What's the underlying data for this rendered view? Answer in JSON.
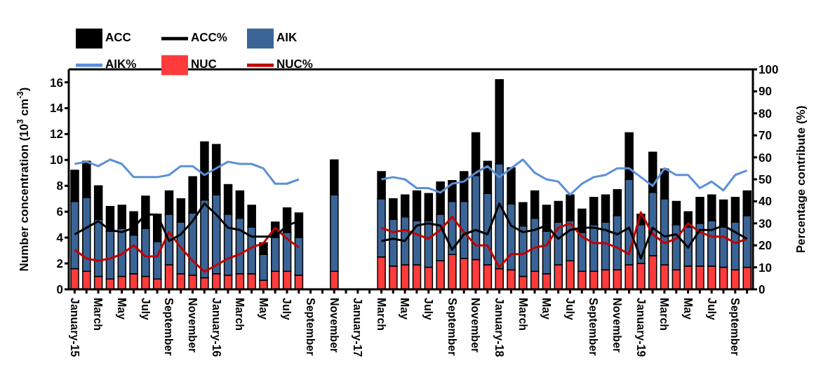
{
  "chart_data": {
    "type": "bar",
    "stacked": true,
    "legend": "top left",
    "ylabel": "Number concentration (10$^{3}$ cm$^{-3}$)",
    "y2label": "Percentage contribute (%)",
    "categories": [
      "January-15",
      null,
      "March",
      null,
      "May",
      null,
      "July",
      null,
      "September",
      null,
      "November",
      null,
      "January-16",
      null,
      "March",
      null,
      "May",
      null,
      "July",
      null,
      "September",
      null,
      "November",
      null,
      "January-17",
      null,
      "March",
      null,
      "May",
      null,
      "July",
      null,
      "September",
      null,
      "November",
      null,
      "January-18",
      null,
      "March",
      null,
      "May",
      null,
      "July",
      null,
      "September",
      null,
      "November",
      null,
      "January-19",
      null,
      "March",
      null,
      "May",
      null,
      "July",
      null,
      "September",
      null
    ],
    "ylim": [
      0,
      17
    ],
    "yticks": [
      0,
      2,
      4,
      6,
      8,
      10,
      12,
      14,
      16
    ],
    "y2lim": [
      0,
      100
    ],
    "y2ticks": [
      0,
      10,
      20,
      30,
      40,
      50,
      60,
      70,
      80,
      90,
      100
    ],
    "series": [
      {
        "name": "NUC",
        "color": "#ff3b3b",
        "values": [
          1.6,
          1.4,
          1.0,
          0.8,
          1.0,
          1.2,
          1.0,
          0.8,
          1.9,
          1.2,
          1.1,
          0.9,
          1.2,
          1.1,
          1.2,
          1.2,
          0.7,
          1.4,
          1.4,
          1.1,
          null,
          null,
          1.4,
          null,
          null,
          null,
          2.5,
          1.8,
          1.9,
          1.9,
          1.7,
          2.2,
          2.7,
          2.4,
          2.3,
          1.9,
          1.6,
          1.5,
          1.0,
          1.4,
          1.2,
          1.9,
          2.2,
          1.4,
          1.4,
          1.5,
          1.5,
          1.9,
          2.0,
          2.6,
          1.9,
          1.5,
          1.8,
          1.8,
          1.8,
          1.7,
          1.5,
          1.7
        ]
      },
      {
        "name": "AIK",
        "color": "#3a6496",
        "values": [
          5.2,
          5.7,
          4.4,
          3.7,
          3.7,
          3.0,
          3.7,
          2.9,
          3.9,
          4.0,
          4.8,
          6.0,
          6.1,
          4.7,
          4.3,
          3.6,
          2.0,
          2.6,
          3.0,
          2.9,
          null,
          null,
          5.9,
          null,
          null,
          null,
          4.5,
          3.6,
          3.7,
          3.4,
          3.6,
          3.6,
          4.1,
          4.4,
          6.5,
          5.5,
          8.1,
          5.1,
          3.9,
          4.1,
          3.3,
          3.3,
          3.1,
          3.0,
          3.6,
          3.7,
          4.2,
          6.6,
          3.0,
          4.9,
          5.1,
          3.5,
          3.0,
          3.3,
          3.5,
          3.1,
          3.7,
          4.0
        ]
      },
      {
        "name": "ACC",
        "color": "#000000",
        "values": [
          2.4,
          2.8,
          2.6,
          1.9,
          1.8,
          1.8,
          2.5,
          2.1,
          1.8,
          1.8,
          2.8,
          4.5,
          3.9,
          2.3,
          2.1,
          1.7,
          0.9,
          1.2,
          1.9,
          1.9,
          null,
          null,
          2.7,
          null,
          null,
          null,
          2.1,
          1.6,
          1.7,
          2.3,
          2.1,
          2.5,
          1.6,
          2.3,
          3.3,
          2.5,
          6.5,
          2.8,
          1.8,
          2.1,
          2.0,
          1.6,
          2.0,
          1.8,
          2.1,
          2.1,
          2.0,
          3.6,
          0.8,
          3.1,
          2.3,
          1.8,
          1.2,
          2.0,
          2.0,
          2.1,
          1.9,
          1.9
        ]
      },
      {
        "name": "NUC%",
        "type": "line",
        "axis": "y2",
        "color": "#c00000",
        "values": [
          18,
          14,
          13,
          14,
          16,
          20,
          15,
          15,
          26,
          19,
          13,
          8,
          11,
          14,
          16,
          19,
          21,
          28,
          23,
          19,
          null,
          null,
          null,
          null,
          null,
          null,
          28,
          26,
          27,
          25,
          23,
          27,
          33,
          26,
          20,
          20,
          10,
          16,
          16,
          19,
          20,
          28,
          30,
          24,
          21,
          21,
          19,
          16,
          35,
          25,
          21,
          23,
          30,
          26,
          24,
          24,
          21,
          23
        ]
      },
      {
        "name": "AIK%",
        "type": "line",
        "axis": "y2",
        "color": "#5b8fd6",
        "values": [
          57,
          58,
          56,
          59,
          57,
          51,
          51,
          51,
          52,
          56,
          56,
          52,
          55,
          58,
          57,
          57,
          55,
          48,
          48,
          50,
          null,
          null,
          null,
          null,
          null,
          null,
          50,
          51,
          50,
          46,
          46,
          44,
          48,
          49,
          53,
          56,
          51,
          55,
          59,
          53,
          50,
          49,
          43,
          48,
          51,
          52,
          55,
          55,
          51,
          47,
          55,
          52,
          52,
          46,
          49,
          45,
          52,
          54
        ]
      },
      {
        "name": "ACC%",
        "type": "line",
        "axis": "y2",
        "color": "#000000",
        "values": [
          25,
          28,
          31,
          27,
          26,
          28,
          34,
          34,
          22,
          25,
          31,
          39,
          34,
          28,
          27,
          24,
          24,
          24,
          29,
          31,
          null,
          null,
          null,
          null,
          null,
          null,
          22,
          23,
          22,
          29,
          30,
          29,
          18,
          25,
          27,
          25,
          39,
          29,
          26,
          27,
          29,
          23,
          27,
          28,
          28,
          27,
          25,
          28,
          14,
          28,
          24,
          25,
          19,
          27,
          27,
          29,
          26,
          23
        ]
      }
    ]
  }
}
